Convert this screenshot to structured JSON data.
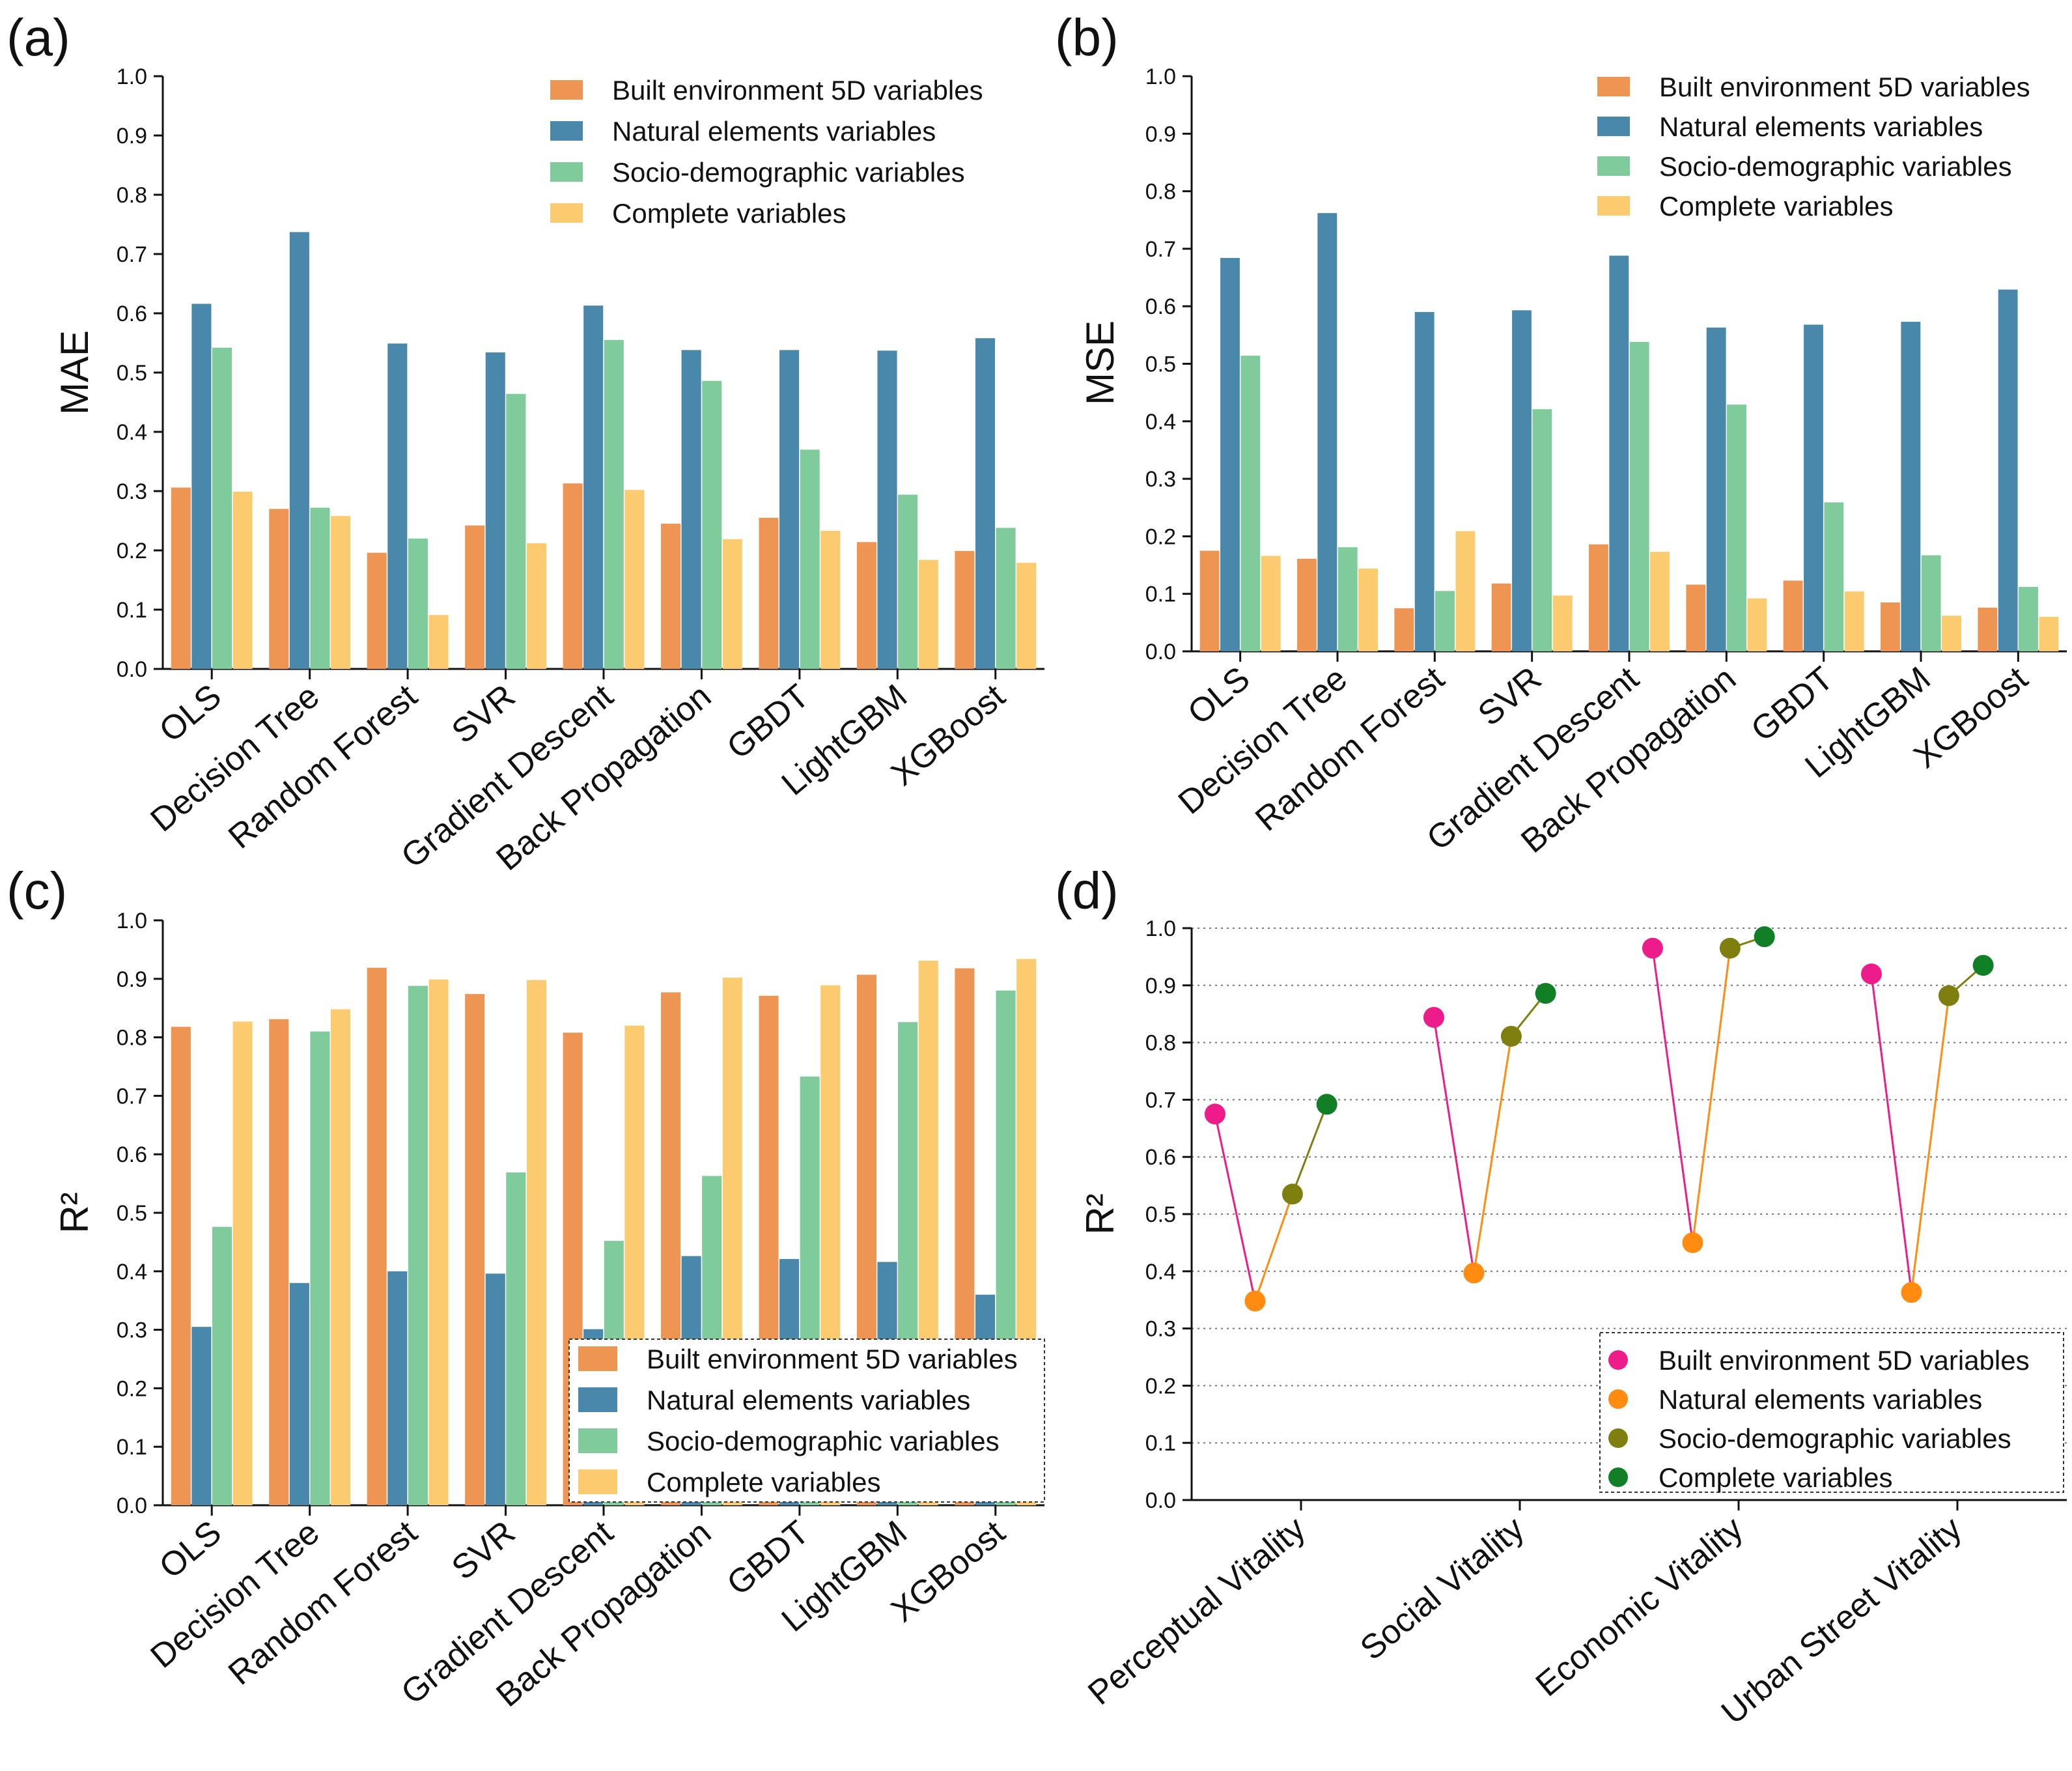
{
  "colors": {
    "built": "#EE9553",
    "natural": "#4A88AB",
    "socio": "#7FCB9B",
    "complete": "#FCCB70",
    "d_built": "#EE1C8A",
    "d_natural": "#FF8C10",
    "d_socio": "#7F7F10",
    "d_complete": "#107F26"
  },
  "chart_data": [
    {
      "id": "a",
      "panel_label": "(a)",
      "type": "bar",
      "ylabel": "MAE",
      "ylim": [
        0,
        1.0
      ],
      "yticks": [
        "0.0",
        "0.1",
        "0.2",
        "0.3",
        "0.4",
        "0.5",
        "0.6",
        "0.7",
        "0.8",
        "0.9",
        "1.0"
      ],
      "legend_position": "top-right",
      "legend_boxed": false,
      "categories": [
        "OLS",
        "Decision Tree",
        "Random Forest",
        "SVR",
        "Gradient Descent",
        "Back Propagation",
        "GBDT",
        "LightGBM",
        "XGBoost"
      ],
      "series": [
        {
          "name": "Built environment 5D variables",
          "color_key": "built",
          "values": [
            0.306,
            0.27,
            0.196,
            0.242,
            0.313,
            0.245,
            0.255,
            0.214,
            0.199
          ]
        },
        {
          "name": "Natural elements variables",
          "color_key": "natural",
          "values": [
            0.616,
            0.737,
            0.549,
            0.534,
            0.613,
            0.538,
            0.538,
            0.537,
            0.558
          ]
        },
        {
          "name": "Socio-demographic variables",
          "color_key": "socio",
          "values": [
            0.542,
            0.272,
            0.22,
            0.464,
            0.555,
            0.486,
            0.37,
            0.294,
            0.238
          ]
        },
        {
          "name": "Complete variables",
          "color_key": "complete",
          "values": [
            0.299,
            0.258,
            0.091,
            0.212,
            0.302,
            0.219,
            0.233,
            0.184,
            0.179
          ]
        }
      ]
    },
    {
      "id": "b",
      "panel_label": "(b)",
      "type": "bar",
      "ylabel": "MSE",
      "ylim": [
        0,
        1.0
      ],
      "yticks": [
        "0.0",
        "0.1",
        "0.2",
        "0.3",
        "0.4",
        "0.5",
        "0.6",
        "0.7",
        "0.8",
        "0.9",
        "1.0"
      ],
      "legend_position": "top-right",
      "legend_boxed": false,
      "categories": [
        "OLS",
        "Decision Tree",
        "Random Forest",
        "SVR",
        "Gradient Descent",
        "Back Propagation",
        "GBDT",
        "LightGBM",
        "XGBoost"
      ],
      "series": [
        {
          "name": "Built environment 5D variables",
          "color_key": "built",
          "values": [
            0.175,
            0.161,
            0.075,
            0.118,
            0.186,
            0.116,
            0.123,
            0.085,
            0.076
          ]
        },
        {
          "name": "Natural elements variables",
          "color_key": "natural",
          "values": [
            0.684,
            0.762,
            0.59,
            0.593,
            0.688,
            0.563,
            0.568,
            0.573,
            0.629
          ]
        },
        {
          "name": "Socio-demographic variables",
          "color_key": "socio",
          "values": [
            0.514,
            0.181,
            0.105,
            0.421,
            0.538,
            0.429,
            0.259,
            0.167,
            0.112
          ]
        },
        {
          "name": "Complete variables",
          "color_key": "complete",
          "values": [
            0.166,
            0.144,
            0.209,
            0.097,
            0.173,
            0.092,
            0.104,
            0.062,
            0.06
          ]
        }
      ]
    },
    {
      "id": "c",
      "panel_label": "(c)",
      "type": "bar",
      "ylabel": "R²",
      "ylim": [
        0,
        1.0
      ],
      "yticks": [
        "0.0",
        "0.1",
        "0.2",
        "0.3",
        "0.4",
        "0.5",
        "0.6",
        "0.7",
        "0.8",
        "0.9",
        "1.0"
      ],
      "legend_position": "bottom-right",
      "legend_boxed": true,
      "categories": [
        "OLS",
        "Decision Tree",
        "Random Forest",
        "SVR",
        "Gradient Descent",
        "Back Propagation",
        "GBDT",
        "LightGBM",
        "XGBoost"
      ],
      "series": [
        {
          "name": "Built environment 5D variables",
          "color_key": "built",
          "values": [
            0.818,
            0.831,
            0.919,
            0.874,
            0.808,
            0.877,
            0.871,
            0.907,
            0.918
          ]
        },
        {
          "name": "Natural elements variables",
          "color_key": "natural",
          "values": [
            0.305,
            0.38,
            0.4,
            0.396,
            0.301,
            0.426,
            0.421,
            0.416,
            0.36
          ]
        },
        {
          "name": "Socio-demographic variables",
          "color_key": "socio",
          "values": [
            0.476,
            0.81,
            0.888,
            0.569,
            0.452,
            0.563,
            0.733,
            0.826,
            0.88
          ]
        },
        {
          "name": "Complete variables",
          "color_key": "complete",
          "values": [
            0.827,
            0.848,
            0.899,
            0.898,
            0.82,
            0.902,
            0.889,
            0.931,
            0.934
          ]
        }
      ]
    },
    {
      "id": "d",
      "panel_label": "(d)",
      "type": "line",
      "ylabel": "R²",
      "ylim": [
        0,
        1.0
      ],
      "yticks": [
        "0.0",
        "0.1",
        "0.2",
        "0.3",
        "0.4",
        "0.5",
        "0.6",
        "0.7",
        "0.8",
        "0.9",
        "1.0"
      ],
      "grid": "horizontal dotted",
      "legend_position": "bottom-right",
      "legend_boxed": true,
      "categories": [
        "Perceptual Vitality",
        "Social Vitality",
        "Economic Vitality",
        "Urban Street Vitality"
      ],
      "series": [
        {
          "name": "Built environment 5D variables",
          "color_key": "d_built",
          "values": [
            0.675,
            0.844,
            0.965,
            0.92
          ]
        },
        {
          "name": "Natural elements variables",
          "color_key": "d_natural",
          "values": [
            0.348,
            0.397,
            0.45,
            0.363
          ]
        },
        {
          "name": "Socio-demographic variables",
          "color_key": "d_socio",
          "values": [
            0.535,
            0.811,
            0.965,
            0.882
          ]
        },
        {
          "name": "Complete variables",
          "color_key": "d_complete",
          "values": [
            0.692,
            0.886,
            0.985,
            0.935
          ]
        }
      ]
    }
  ]
}
